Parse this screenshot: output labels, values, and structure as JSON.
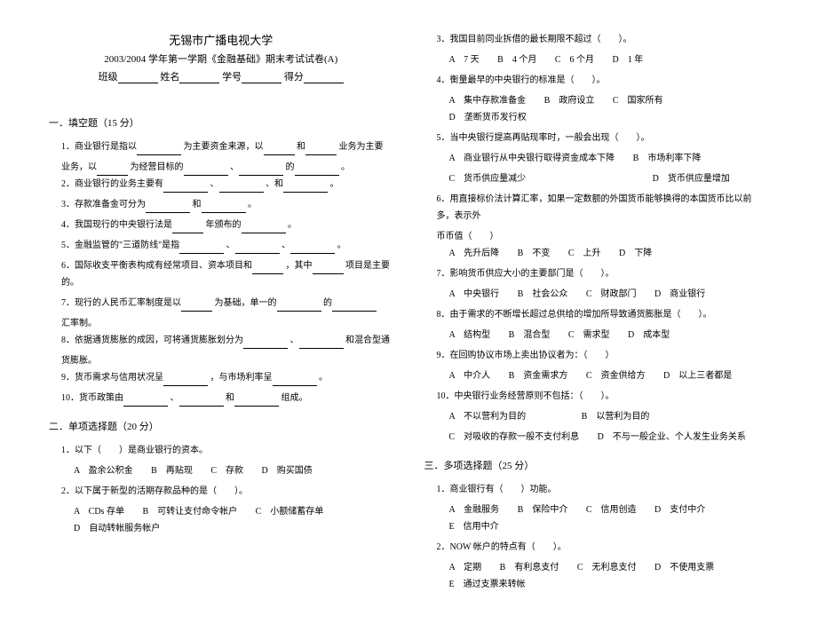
{
  "header": {
    "title": "无锡市广播电视大学",
    "subtitle": "2003/2004 学年第一学期《金融基础》期末考试试卷(A)",
    "form_class": "班级",
    "form_name": "姓名",
    "form_id": "学号",
    "form_score": "得分"
  },
  "section1": {
    "title": "一．填空题（15 分）",
    "q1a": "1．商业银行是指以",
    "q1b": "为主要资金来源，以",
    "q1c": "和",
    "q1d": "业务为主要",
    "q1e": "业务，以",
    "q1f": "为经营目标的",
    "q1g": "、",
    "q1h": "的",
    "q1i": "。",
    "q2a": "2．商业银行的业务主要有",
    "q2b": "、",
    "q2c": "、和",
    "q2d": "。",
    "q3a": "3．存款准备金可分为",
    "q3b": "和",
    "q3c": "。",
    "q4a": "4．我国现行的中央银行法是",
    "q4b": "年颁布的",
    "q4c": "。",
    "q5": "5．金融监管的\"三道防线\"是指",
    "q5b": "、",
    "q5c": "、",
    "q5d": "。",
    "q6a": "6．国际收支平衡表构成有经常项目、资本项目和",
    "q6b": "，其中",
    "q6c": "项目是主要的。",
    "q7a": "7．现行的人民币汇率制度是以",
    "q7b": "为基础，单一的",
    "q7c": "的",
    "q7d": "汇率制。",
    "q8a": "8．依据通货膨胀的成因，可将通货膨胀划分为",
    "q8b": "、",
    "q8c": "和混合型通",
    "q8d": "货膨胀。",
    "q9a": "9．货币需求与信用状况呈",
    "q9b": "，与市场利率呈",
    "q9c": "。",
    "q10a": "10．货币政策由",
    "q10b": "、",
    "q10c": "和",
    "q10d": "组成。"
  },
  "section2": {
    "title": "二．单项选择题（20 分）",
    "q1": "1．以下（　　）是商业银行的资本。",
    "q1_a": "A　盈余公积金",
    "q1_b": "B　再贴现",
    "q1_c": "C　存款",
    "q1_d": "D　购买国债",
    "q2": "2．以下属于新型的活期存款品种的是（　　）。",
    "q2_a": "A　CDs 存单",
    "q2_b": "B　可转让支付命令帐户",
    "q2_c": "C　小额储蓄存单",
    "q2_d": "D　自动转帐服务帐户"
  },
  "right": {
    "q3": "3．我国目前同业拆借的最长期限不超过（　　）。",
    "q3_a": "A　7 天",
    "q3_b": "B　4 个月",
    "q3_c": "C　6 个月",
    "q3_d": "D　1 年",
    "q4": "4．衡量最早的中央银行的标准是（　　）。",
    "q4_a": "A　集中存款准备金",
    "q4_b": "B　政府设立",
    "q4_c": "C　国家所有",
    "q4_d": "D　垄断货币发行权",
    "q5": "5．当中央银行提高再贴现率时，一般会出现（　　）。",
    "q5_a": "A　商业银行从中央银行取得资金成本下降",
    "q5_b": "B　市场利率下降",
    "q5_c": "C　货币供应量减少",
    "q5_d": "D　货币供应量增加",
    "q6a": "6．用直接标价法计算汇率，如果一定数额的外国货币能够换得的本国货币比以前多，表示外",
    "q6b": "币币值（　　）",
    "q6_a": "A　先升后降",
    "q6_b": "B　不变",
    "q6_c": "C　上升",
    "q6_d": "D　下降",
    "q7": "7．影响货币供应大小的主要部门是（　　）。",
    "q7_a": "A　中央银行",
    "q7_b": "B　社会公众",
    "q7_c": "C　财政部门",
    "q7_d": "D　商业银行",
    "q8": "8．由于需求的不断增长超过总供给的增加所导致通货膨胀是（　　）。",
    "q8_a": "A　结构型",
    "q8_b": "B　混合型",
    "q8_c": "C　需求型",
    "q8_d": "D　成本型",
    "q9": "9．在回购协议市场上卖出协议者为：（　　）",
    "q9_a": "A　中介人",
    "q9_b": "B　资金需求方",
    "q9_c": "C　资金供给方",
    "q9_d": "D　以上三者都是",
    "q10": "10．中央银行业务经营原则不包括：（　　）。",
    "q10_a": "A　不以营利为目的",
    "q10_b": "B　以营利为目的",
    "q10_c": "C　对吸收的存款一般不支付利息",
    "q10_d": "D　不与一般企业、个人发生业务关系"
  },
  "section3": {
    "title": "三．多项选择题（25 分）",
    "q1": "1．商业银行有（　　）功能。",
    "q1_a": "A　金融服务",
    "q1_b": "B　保险中介",
    "q1_c": "C　信用创造",
    "q1_d": "D　支付中介",
    "q1_e": "E　信用中介",
    "q2": "2．NOW 帐户的特点有（　　）。",
    "q2_a": "A　定期",
    "q2_b": "B　有利息支付",
    "q2_c": "C　无利息支付",
    "q2_d": "D　不使用支票",
    "q2_e": "E　通过支票来转帐"
  }
}
